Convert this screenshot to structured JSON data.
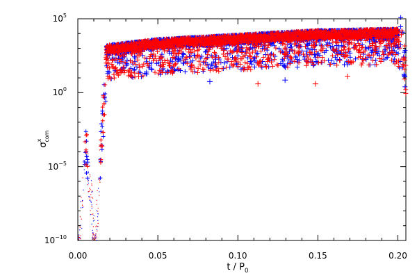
{
  "colors": {
    "axis": "#000000",
    "series_blue": "#0000ff",
    "series_red": "#ff0000",
    "background": "#ffffff"
  },
  "chart_data": {
    "type": "scatter",
    "title": "",
    "xlabel": "t / P",
    "xlabel_sub": "0",
    "ylabel": "σ",
    "ylabel_sup": "x",
    "ylabel_sub": "com",
    "xlim": [
      0.0,
      0.205
    ],
    "ylim_log10": [
      -10,
      5
    ],
    "yscale": "log",
    "grid": false,
    "legend": "none",
    "x_ticks": [
      {
        "value": 0.0,
        "label": "0.00"
      },
      {
        "value": 0.05,
        "label": "0.05"
      },
      {
        "value": 0.1,
        "label": "0.10"
      },
      {
        "value": 0.15,
        "label": "0.15"
      },
      {
        "value": 0.2,
        "label": "0.20"
      }
    ],
    "y_ticks": [
      {
        "log10": -10,
        "base": "10",
        "exp": "−10"
      },
      {
        "log10": -5,
        "base": "10",
        "exp": "−5"
      },
      {
        "log10": 0,
        "base": "10",
        "exp": "0"
      },
      {
        "log10": 5,
        "base": "10",
        "exp": "5"
      }
    ],
    "series": [
      {
        "color": "blue",
        "marker": "plus",
        "envelope": [
          {
            "x": 0.0,
            "y_log10": -10
          },
          {
            "x": 0.005,
            "y_log10": -1.5
          },
          {
            "x": 0.007,
            "y_log10": -4
          },
          {
            "x": 0.011,
            "y_log10": -9
          },
          {
            "x": 0.015,
            "y_log10": -1
          },
          {
            "x": 0.018,
            "y_log10": 3.2
          },
          {
            "x": 0.05,
            "y_log10": 3.6
          },
          {
            "x": 0.1,
            "y_log10": 3.9
          },
          {
            "x": 0.15,
            "y_log10": 4.2
          },
          {
            "x": 0.2,
            "y_log10": 4.3
          },
          {
            "x": 0.205,
            "y_log10": 0
          }
        ]
      },
      {
        "color": "red",
        "marker": "plus",
        "envelope": [
          {
            "x": 0.0,
            "y_log10": -10
          },
          {
            "x": 0.005,
            "y_log10": -1.5
          },
          {
            "x": 0.007,
            "y_log10": -4
          },
          {
            "x": 0.011,
            "y_log10": -9
          },
          {
            "x": 0.015,
            "y_log10": -1
          },
          {
            "x": 0.018,
            "y_log10": 3.2
          },
          {
            "x": 0.05,
            "y_log10": 3.6
          },
          {
            "x": 0.1,
            "y_log10": 3.9
          },
          {
            "x": 0.15,
            "y_log10": 4.2
          },
          {
            "x": 0.2,
            "y_log10": 4.3
          },
          {
            "x": 0.205,
            "y_log10": 0
          }
        ]
      }
    ],
    "outliers": [
      {
        "color": "red",
        "x": 0.1126,
        "y_log10": 0.6
      },
      {
        "color": "red",
        "x": 0.1485,
        "y_log10": 0.6
      },
      {
        "color": "blue",
        "x": 0.0825,
        "y_log10": 0.75
      },
      {
        "color": "blue",
        "x": 0.1295,
        "y_log10": 0.85
      },
      {
        "color": "red",
        "x": 0.1685,
        "y_log10": 1.1
      }
    ]
  }
}
